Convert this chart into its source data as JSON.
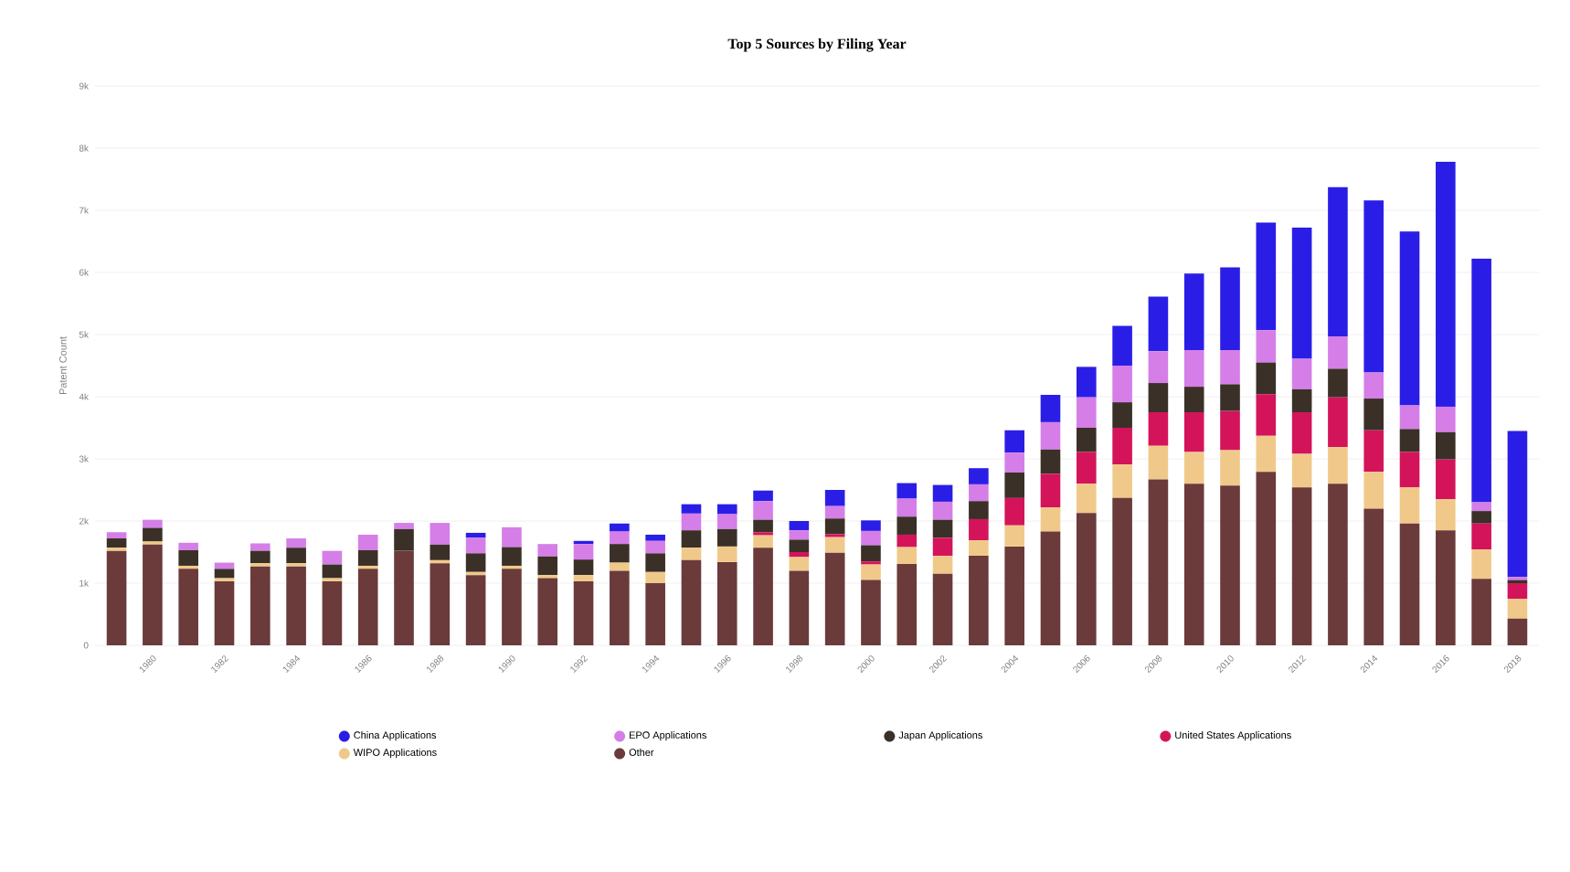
{
  "chart_data": {
    "type": "bar",
    "title": "Top 5 Sources by Filing Year",
    "ylabel": "Patent Count",
    "categories": [
      null,
      "1980",
      null,
      "1982",
      null,
      "1984",
      null,
      "1986",
      null,
      "1988",
      null,
      "1990",
      null,
      "1992",
      null,
      "1994",
      null,
      "1996",
      null,
      "1998",
      null,
      "2000",
      null,
      "2002",
      null,
      "2004",
      null,
      "2006",
      null,
      "2008",
      null,
      "2010",
      null,
      "2012",
      null,
      "2014",
      null,
      "2016",
      null,
      "2018"
    ],
    "stacked": true,
    "series": [
      {
        "name": "Other",
        "color": "#6b3a3a",
        "values": [
          1520,
          1620,
          1230,
          1030,
          1270,
          1270,
          1030,
          1230,
          1520,
          1320,
          1130,
          1230,
          1080,
          1030,
          1200,
          1000,
          1370,
          1340,
          1570,
          1200,
          1490,
          1050,
          1310,
          1150,
          1440,
          1590,
          1830,
          2130,
          2370,
          2670,
          2600,
          2570,
          2790,
          2540,
          2600,
          2200,
          1960,
          1850,
          1070,
          430
        ]
      },
      {
        "name": "WIPO Applications",
        "color": "#f0c98a",
        "values": [
          50,
          50,
          50,
          50,
          50,
          50,
          50,
          50,
          0,
          50,
          50,
          50,
          50,
          100,
          130,
          180,
          200,
          250,
          200,
          220,
          250,
          250,
          270,
          290,
          250,
          340,
          390,
          470,
          540,
          540,
          510,
          570,
          580,
          540,
          590,
          590,
          580,
          500,
          470,
          320
        ]
      },
      {
        "name": "United States Applications",
        "color": "#d4145a",
        "values": [
          0,
          0,
          0,
          0,
          0,
          0,
          0,
          0,
          0,
          0,
          0,
          0,
          0,
          0,
          0,
          0,
          0,
          0,
          50,
          80,
          50,
          50,
          200,
          290,
          340,
          440,
          540,
          510,
          590,
          540,
          640,
          630,
          670,
          670,
          800,
          670,
          570,
          640,
          420,
          250
        ]
      },
      {
        "name": "Japan Applications",
        "color": "#3a3028",
        "values": [
          150,
          220,
          250,
          150,
          200,
          250,
          220,
          250,
          350,
          250,
          300,
          300,
          300,
          250,
          300,
          300,
          280,
          280,
          200,
          200,
          250,
          260,
          290,
          290,
          290,
          410,
          390,
          390,
          410,
          470,
          410,
          430,
          510,
          370,
          460,
          510,
          370,
          440,
          200,
          50
        ]
      },
      {
        "name": "EPO Applications",
        "color": "#d57ee8",
        "values": [
          100,
          130,
          120,
          100,
          120,
          150,
          220,
          250,
          100,
          350,
          250,
          320,
          200,
          250,
          200,
          200,
          270,
          240,
          300,
          150,
          200,
          230,
          290,
          290,
          270,
          320,
          440,
          490,
          590,
          510,
          590,
          550,
          520,
          490,
          520,
          420,
          380,
          410,
          140,
          50
        ]
      },
      {
        "name": "China Applications",
        "color": "#2a1ee6",
        "values": [
          0,
          0,
          0,
          0,
          0,
          0,
          0,
          0,
          0,
          0,
          80,
          0,
          0,
          50,
          130,
          100,
          150,
          160,
          170,
          150,
          260,
          170,
          250,
          270,
          260,
          360,
          440,
          490,
          640,
          880,
          1230,
          1330,
          1730,
          2110,
          2400,
          2770,
          2800,
          3940,
          3920,
          2350
        ]
      }
    ],
    "ylim": [
      0,
      9000
    ],
    "yticks": [
      0,
      {
        "value": 1000,
        "label": "1k"
      },
      {
        "value": 2000,
        "label": "2k"
      },
      {
        "value": 3000,
        "label": "3k"
      },
      {
        "value": 4000,
        "label": "4k"
      },
      {
        "value": 5000,
        "label": "5k"
      },
      {
        "value": 6000,
        "label": "6k"
      },
      {
        "value": 7000,
        "label": "7k"
      },
      {
        "value": 8000,
        "label": "8k"
      },
      {
        "value": 9000,
        "label": "9k"
      }
    ],
    "grid": "y",
    "legend": "bottom"
  }
}
